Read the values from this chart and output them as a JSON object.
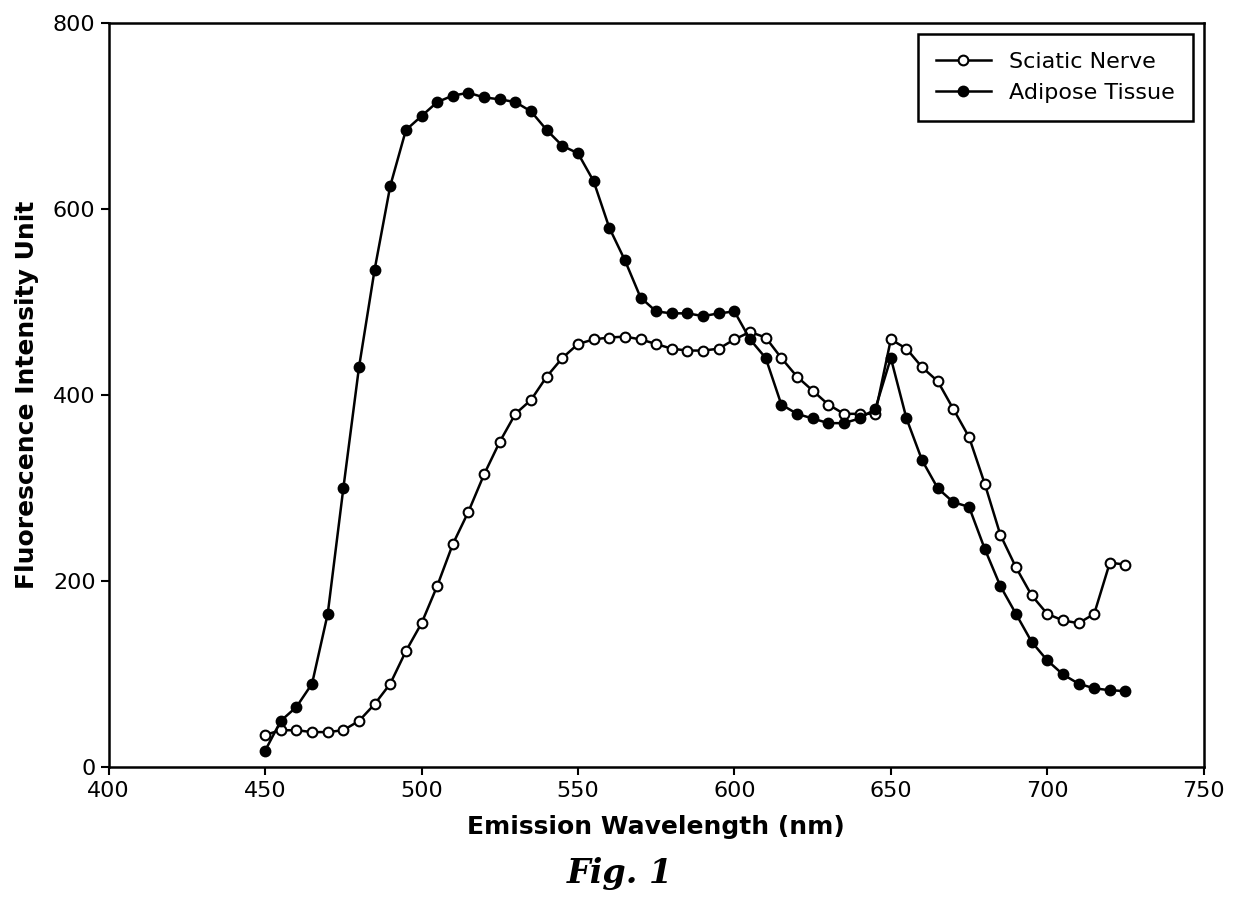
{
  "sciatic_nerve_x": [
    450,
    455,
    460,
    465,
    470,
    475,
    480,
    485,
    490,
    495,
    500,
    505,
    510,
    515,
    520,
    525,
    530,
    535,
    540,
    545,
    550,
    555,
    560,
    565,
    570,
    575,
    580,
    585,
    590,
    595,
    600,
    605,
    610,
    615,
    620,
    625,
    630,
    635,
    640,
    645,
    650,
    655,
    660,
    665,
    670,
    675,
    680,
    685,
    690,
    695,
    700,
    705,
    710,
    715,
    720,
    725
  ],
  "sciatic_nerve_y": [
    35,
    40,
    40,
    38,
    38,
    40,
    50,
    68,
    90,
    125,
    155,
    195,
    240,
    275,
    315,
    350,
    380,
    395,
    420,
    440,
    455,
    460,
    462,
    463,
    460,
    455,
    450,
    448,
    448,
    450,
    460,
    468,
    462,
    440,
    420,
    405,
    390,
    380,
    380,
    380,
    460,
    450,
    430,
    415,
    385,
    355,
    305,
    250,
    215,
    185,
    165,
    158,
    155,
    165,
    220,
    218
  ],
  "adipose_tissue_x": [
    450,
    455,
    460,
    465,
    470,
    475,
    480,
    485,
    490,
    495,
    500,
    505,
    510,
    515,
    520,
    525,
    530,
    535,
    540,
    545,
    550,
    555,
    560,
    565,
    570,
    575,
    580,
    585,
    590,
    595,
    600,
    605,
    610,
    615,
    620,
    625,
    630,
    635,
    640,
    645,
    650,
    655,
    660,
    665,
    670,
    675,
    680,
    685,
    690,
    695,
    700,
    705,
    710,
    715,
    720,
    725
  ],
  "adipose_tissue_y": [
    18,
    50,
    65,
    90,
    165,
    300,
    430,
    535,
    625,
    685,
    700,
    715,
    722,
    725,
    720,
    718,
    715,
    705,
    685,
    668,
    660,
    630,
    580,
    545,
    505,
    490,
    488,
    488,
    485,
    488,
    490,
    460,
    440,
    390,
    380,
    375,
    370,
    370,
    375,
    385,
    440,
    375,
    330,
    300,
    285,
    280,
    235,
    195,
    165,
    135,
    115,
    100,
    90,
    85,
    83,
    82
  ],
  "xlabel": "Emission Wavelength (nm)",
  "ylabel": "Fluorescence Intensity Unit",
  "xlim": [
    400,
    750
  ],
  "ylim": [
    0,
    800
  ],
  "xticks": [
    400,
    450,
    500,
    550,
    600,
    650,
    700,
    750
  ],
  "yticks": [
    0,
    200,
    400,
    600,
    800
  ],
  "legend_labels": [
    "Sciatic Nerve",
    "Adipose Tissue"
  ],
  "line_color": "#000000",
  "fig_caption": "Fig. 1"
}
